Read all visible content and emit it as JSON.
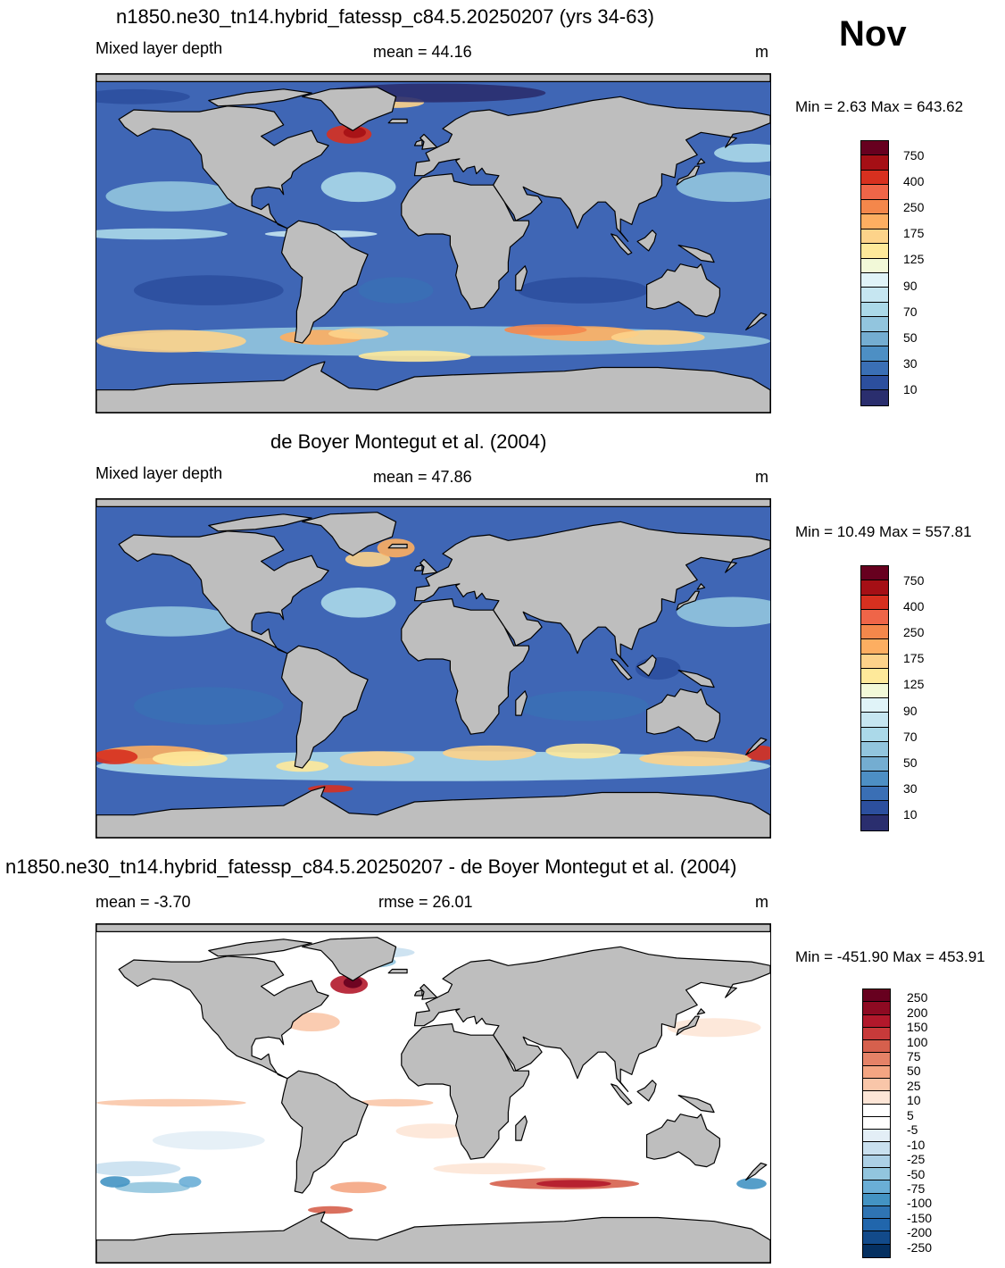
{
  "month": "Nov",
  "panels": [
    {
      "title": "n1850.ne30_tn14.hybrid_fatessp_c84.5.20250207 (yrs 34-63)",
      "left_label": "Mixed layer depth",
      "center_label": "mean =  44.16",
      "units": "m",
      "minmax": "Min =   2.63 Max = 643.62",
      "colorbar": "absolute"
    },
    {
      "title": "de Boyer Montegut et al. (2004)",
      "left_label": "Mixed layer depth",
      "center_label": "mean =  47.86",
      "units": "m",
      "minmax": "Min =  10.49 Max = 557.81",
      "colorbar": "absolute"
    },
    {
      "title": "n1850.ne30_tn14.hybrid_fatessp_c84.5.20250207 - de Boyer Montegut et al. (2004)",
      "left_label": "mean =  -3.70",
      "center_label": "rmse =  26.01",
      "units": "m",
      "minmax": "Min = -451.90 Max = 453.91",
      "colorbar": "difference"
    }
  ],
  "colorbars": {
    "absolute": {
      "labels": [
        "750",
        "400",
        "250",
        "175",
        "125",
        "90",
        "70",
        "50",
        "30",
        "10"
      ],
      "colors": [
        "#67001f",
        "#a50f15",
        "#d7301f",
        "#ef6548",
        "#f4874b",
        "#fdae61",
        "#fdd38a",
        "#fee99a",
        "#f2f9d8",
        "#e0f3f8",
        "#c6e6f1",
        "#abd9e9",
        "#92c5de",
        "#74add1",
        "#4d8fc4",
        "#3a6fb5",
        "#2c4f9e",
        "#2a2e6e"
      ]
    },
    "difference": {
      "labels": [
        "250",
        "200",
        "150",
        "100",
        "75",
        "50",
        "25",
        "10",
        "5",
        "-5",
        "-10",
        "-25",
        "-50",
        "-75",
        "-100",
        "-150",
        "-200",
        "-250"
      ],
      "colors": [
        "#67001f",
        "#8e0a22",
        "#b2182b",
        "#c83a3a",
        "#d6604d",
        "#e58267",
        "#f4a582",
        "#f9c6a9",
        "#fde5d6",
        "#ffffff",
        "#ffffff",
        "#e3eef6",
        "#c9e0ef",
        "#acd0e6",
        "#92c5de",
        "#6aaed6",
        "#4393c3",
        "#2f74b3",
        "#2166ac",
        "#124a8a",
        "#053061"
      ]
    }
  },
  "map_colors": {
    "land": "#bebebe",
    "coast": "#000000",
    "ocean_abs": "#3f66b5",
    "ocean_diff": "#ffffff"
  }
}
